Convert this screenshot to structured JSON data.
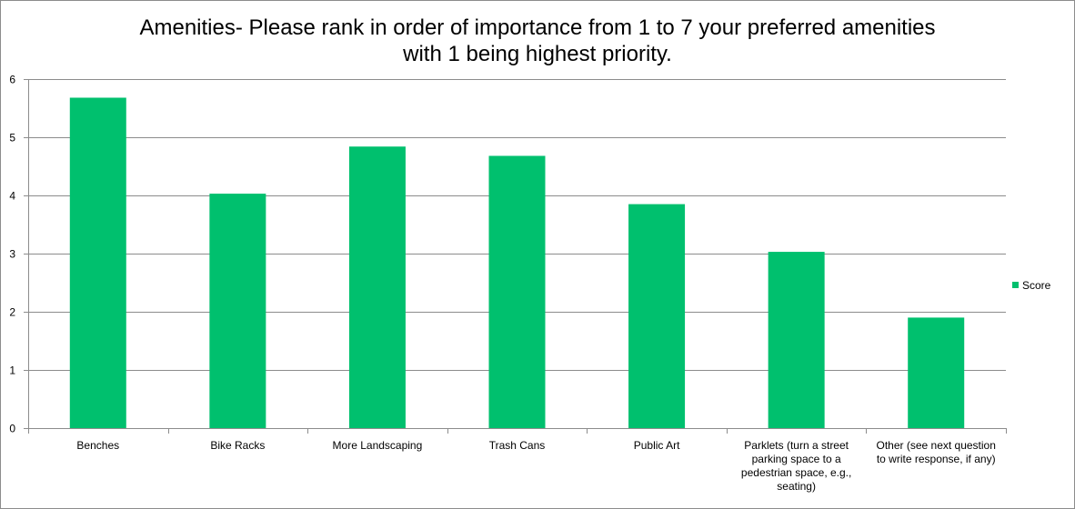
{
  "chart_data": {
    "type": "bar",
    "title_lines": [
      "Amenities- Please rank in order of importance from 1 to 7 your preferred amenities",
      "with 1 being highest priority."
    ],
    "categories": [
      [
        "Benches"
      ],
      [
        "Bike Racks"
      ],
      [
        "More Landscaping"
      ],
      [
        "Trash Cans"
      ],
      [
        "Public Art"
      ],
      [
        "Parklets (turn a street",
        "parking space to a",
        "pedestrian space, e.g.,",
        "seating)"
      ],
      [
        "Other (see next question",
        "to write response, if any)"
      ]
    ],
    "series": [
      {
        "name": "Score",
        "values": [
          5.68,
          4.03,
          4.84,
          4.68,
          3.85,
          3.03,
          1.9
        ],
        "color": "#00c06e"
      }
    ],
    "ylim": [
      0,
      6
    ],
    "yticks": [
      0,
      1,
      2,
      3,
      4,
      5,
      6
    ],
    "grid": true,
    "legend_position": "right"
  }
}
